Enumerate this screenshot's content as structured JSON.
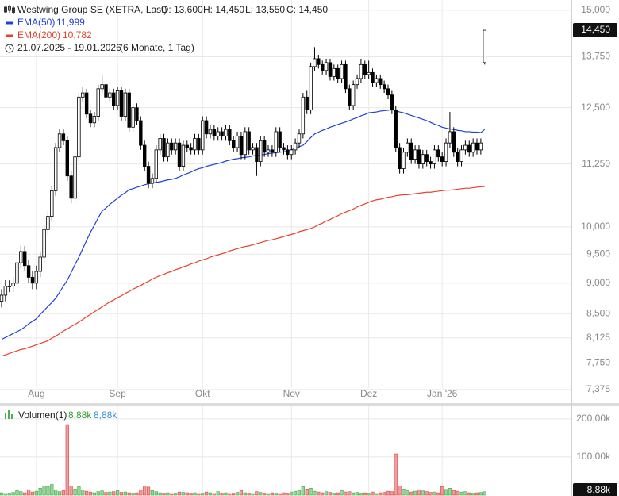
{
  "chart_data": [
    {
      "type": "candlestick",
      "title": "Westwing Group SE (XETRA, Last)",
      "header_values": [
        "O: 13,600",
        "H: 14,450",
        "L: 13,550",
        "C: 14,450"
      ],
      "range": "21.07.2025 - 19.01.2026",
      "period": "(6 Monate, 1 Tag)",
      "categories": [
        null,
        null,
        null,
        null,
        null,
        null,
        null,
        null,
        null,
        "Aug",
        null,
        null,
        null,
        null,
        null,
        null,
        null,
        null,
        null,
        null,
        null,
        null,
        null,
        null,
        null,
        null,
        null,
        null,
        null,
        null,
        "Sep",
        null,
        null,
        null,
        null,
        null,
        null,
        null,
        null,
        null,
        null,
        null,
        null,
        null,
        null,
        null,
        null,
        null,
        null,
        null,
        null,
        null,
        "Okt",
        null,
        null,
        null,
        null,
        null,
        null,
        null,
        null,
        null,
        null,
        null,
        null,
        null,
        null,
        null,
        null,
        null,
        null,
        null,
        null,
        null,
        null,
        "Nov",
        null,
        null,
        null,
        null,
        null,
        null,
        null,
        null,
        null,
        null,
        null,
        null,
        null,
        null,
        null,
        null,
        null,
        null,
        null,
        "Dez",
        null,
        null,
        null,
        null,
        null,
        null,
        null,
        null,
        null,
        null,
        null,
        null,
        null,
        null,
        null,
        null,
        null,
        null,
        "Jan '26",
        null,
        null,
        null,
        null,
        null,
        null,
        null,
        null,
        null,
        null,
        null
      ],
      "open": [
        8.7,
        8.8,
        8.95,
        8.95,
        9.0,
        9.35,
        9.55,
        9.3,
        9.1,
        9.0,
        9.2,
        9.45,
        9.95,
        10.2,
        10.7,
        11.6,
        11.9,
        11.75,
        11.0,
        10.55,
        11.4,
        12.75,
        12.85,
        12.35,
        12.15,
        12.3,
        12.95,
        13.05,
        12.75,
        12.85,
        12.55,
        12.9,
        12.3,
        12.85,
        12.05,
        12.5,
        12.2,
        11.65,
        11.2,
        10.85,
        10.95,
        11.55,
        11.8,
        11.4,
        11.7,
        11.55,
        11.7,
        11.2,
        11.65,
        11.6,
        11.55,
        11.8,
        11.55,
        12.2,
        11.9,
        12.0,
        11.85,
        11.95,
        11.85,
        12.0,
        11.75,
        11.6,
        11.85,
        11.45,
        11.95,
        11.55,
        11.6,
        11.3,
        11.75,
        11.5,
        11.55,
        11.5,
        11.95,
        11.6,
        11.55,
        11.45,
        11.55,
        11.7,
        11.9,
        12.75,
        12.45,
        13.5,
        13.7,
        13.55,
        13.4,
        13.6,
        13.25,
        13.45,
        13.2,
        13.55,
        12.95,
        12.55,
        13.05,
        13.2,
        13.55,
        13.3,
        13.35,
        13.1,
        13.2,
        13.05,
        12.95,
        12.8,
        12.45,
        11.6,
        11.15,
        11.5,
        11.7,
        11.35,
        11.55,
        11.25,
        11.45,
        11.3,
        11.25,
        11.55,
        11.4,
        11.3,
        11.7,
        11.95,
        11.5,
        11.3,
        11.55,
        11.65,
        11.5,
        11.7,
        11.55,
        13.6
      ],
      "high": [
        8.9,
        9.05,
        9.05,
        9.1,
        9.45,
        9.65,
        9.65,
        9.4,
        9.2,
        9.3,
        9.55,
        10.05,
        10.3,
        10.8,
        11.7,
        12.0,
        12.0,
        11.85,
        11.1,
        11.5,
        12.85,
        13.0,
        12.95,
        12.45,
        12.4,
        13.05,
        13.3,
        13.15,
        12.95,
        12.95,
        13.0,
        13.0,
        12.95,
        12.95,
        12.6,
        12.6,
        12.3,
        11.75,
        11.3,
        11.05,
        11.65,
        11.9,
        11.9,
        11.8,
        11.8,
        11.8,
        11.8,
        11.75,
        11.75,
        11.7,
        11.9,
        11.9,
        12.3,
        12.3,
        12.1,
        12.1,
        12.05,
        12.05,
        12.1,
        12.1,
        11.85,
        11.95,
        11.95,
        12.05,
        12.05,
        11.7,
        11.7,
        11.85,
        11.85,
        11.65,
        11.65,
        12.05,
        12.05,
        11.7,
        11.65,
        11.65,
        11.8,
        12.0,
        12.85,
        12.9,
        13.6,
        14.0,
        13.8,
        13.65,
        13.7,
        13.7,
        13.55,
        13.55,
        13.65,
        13.65,
        13.05,
        13.15,
        13.3,
        13.7,
        13.65,
        13.65,
        13.45,
        13.3,
        13.3,
        13.15,
        13.05,
        12.9,
        12.55,
        11.7,
        11.6,
        11.8,
        11.8,
        11.65,
        11.65,
        11.55,
        11.55,
        11.4,
        11.65,
        11.65,
        11.5,
        11.8,
        12.4,
        12.05,
        11.6,
        11.65,
        11.75,
        11.75,
        11.8,
        11.8,
        11.8,
        14.45
      ],
      "low": [
        8.6,
        8.7,
        8.85,
        8.85,
        8.9,
        9.25,
        9.2,
        9.0,
        8.9,
        8.9,
        9.1,
        9.35,
        9.85,
        10.1,
        10.6,
        11.5,
        11.65,
        10.9,
        10.45,
        10.45,
        11.3,
        12.65,
        12.25,
        12.05,
        12.05,
        12.2,
        12.85,
        12.65,
        12.65,
        12.45,
        12.45,
        12.2,
        12.2,
        11.95,
        11.95,
        12.1,
        11.55,
        11.1,
        10.75,
        10.75,
        10.85,
        11.45,
        11.3,
        11.3,
        11.45,
        11.45,
        11.1,
        11.1,
        11.5,
        11.45,
        11.45,
        11.45,
        11.45,
        11.8,
        11.8,
        11.75,
        11.75,
        11.75,
        11.75,
        11.65,
        11.5,
        11.5,
        11.35,
        11.35,
        11.45,
        11.45,
        11.0,
        11.2,
        11.4,
        11.4,
        11.4,
        11.4,
        11.5,
        11.45,
        11.35,
        11.35,
        11.45,
        11.6,
        11.8,
        12.35,
        12.35,
        13.4,
        13.45,
        13.3,
        13.3,
        13.15,
        13.15,
        13.1,
        13.1,
        12.85,
        12.45,
        12.45,
        12.95,
        13.1,
        13.2,
        13.2,
        13.0,
        13.0,
        12.95,
        12.85,
        12.7,
        12.35,
        11.5,
        11.05,
        11.05,
        11.4,
        11.25,
        11.25,
        11.15,
        11.15,
        11.2,
        11.15,
        11.15,
        11.3,
        11.2,
        11.2,
        11.6,
        11.4,
        11.2,
        11.2,
        11.45,
        11.4,
        11.4,
        11.45,
        11.45,
        13.55
      ],
      "close": [
        8.8,
        8.95,
        8.95,
        9.0,
        9.35,
        9.55,
        9.3,
        9.1,
        9.0,
        9.2,
        9.45,
        9.95,
        10.2,
        10.7,
        11.6,
        11.9,
        11.75,
        11.0,
        10.55,
        11.4,
        12.75,
        12.85,
        12.35,
        12.15,
        12.3,
        12.95,
        13.05,
        12.75,
        12.85,
        12.55,
        12.9,
        12.3,
        12.85,
        12.05,
        12.5,
        12.2,
        11.65,
        11.2,
        10.85,
        10.95,
        11.55,
        11.8,
        11.4,
        11.7,
        11.55,
        11.7,
        11.2,
        11.65,
        11.6,
        11.55,
        11.8,
        11.55,
        12.2,
        11.9,
        12.0,
        11.85,
        11.95,
        11.85,
        12.0,
        11.75,
        11.6,
        11.85,
        11.45,
        11.95,
        11.55,
        11.6,
        11.3,
        11.75,
        11.5,
        11.55,
        11.5,
        11.95,
        11.6,
        11.55,
        11.45,
        11.55,
        11.7,
        11.9,
        12.75,
        12.45,
        13.5,
        13.7,
        13.55,
        13.4,
        13.6,
        13.25,
        13.45,
        13.2,
        13.55,
        12.95,
        12.55,
        13.05,
        13.2,
        13.55,
        13.3,
        13.35,
        13.1,
        13.2,
        13.05,
        12.95,
        12.8,
        12.45,
        11.6,
        11.15,
        11.5,
        11.7,
        11.35,
        11.55,
        11.25,
        11.45,
        11.3,
        11.25,
        11.55,
        11.4,
        11.3,
        11.7,
        11.95,
        11.5,
        11.3,
        11.55,
        11.65,
        11.5,
        11.7,
        11.55,
        11.7,
        14.45
      ],
      "up_color": "#ffffff",
      "down_color": "#000000",
      "last_value_label": "14,450",
      "series": [
        {
          "name": "EMA(50)",
          "color": "#2040d8",
          "value_label": "11,999",
          "values": [
            8.1,
            8.13,
            8.16,
            8.19,
            8.22,
            8.25,
            8.29,
            8.34,
            8.38,
            8.42,
            8.49,
            8.55,
            8.62,
            8.68,
            8.75,
            8.85,
            8.95,
            9.05,
            9.18,
            9.32,
            9.45,
            9.6,
            9.75,
            9.9,
            10.03,
            10.17,
            10.3,
            10.36,
            10.43,
            10.49,
            10.55,
            10.61,
            10.66,
            10.72,
            10.74,
            10.77,
            10.79,
            10.82,
            10.84,
            10.85,
            10.87,
            10.88,
            10.9,
            10.92,
            10.93,
            10.95,
            10.98,
            11.02,
            11.05,
            11.08,
            11.12,
            11.15,
            11.17,
            11.2,
            11.22,
            11.24,
            11.26,
            11.28,
            11.31,
            11.33,
            11.35,
            11.36,
            11.38,
            11.39,
            11.4,
            11.42,
            11.43,
            11.44,
            11.45,
            11.47,
            11.48,
            11.49,
            11.5,
            11.51,
            11.52,
            11.55,
            11.58,
            11.62,
            11.65,
            11.73,
            11.82,
            11.9,
            11.94,
            11.98,
            12.01,
            12.05,
            12.08,
            12.11,
            12.14,
            12.17,
            12.2,
            12.24,
            12.27,
            12.31,
            12.34,
            12.38,
            12.39,
            12.4,
            12.42,
            12.43,
            12.44,
            12.45,
            12.43,
            12.4,
            12.38,
            12.35,
            12.32,
            12.29,
            12.26,
            12.23,
            12.2,
            12.16,
            12.12,
            12.09,
            12.05,
            12.03,
            12.01,
            12.0,
            11.98,
            11.97,
            11.95,
            11.95,
            11.94,
            11.94,
            11.93,
            11.999
          ]
        },
        {
          "name": "EMA(200)",
          "color": "#e8412c",
          "value_label": "10,782",
          "values": [
            7.85,
            7.87,
            7.89,
            7.91,
            7.93,
            7.95,
            7.96,
            7.98,
            8.0,
            8.02,
            8.04,
            8.06,
            8.08,
            8.12,
            8.15,
            8.19,
            8.23,
            8.26,
            8.3,
            8.33,
            8.37,
            8.41,
            8.45,
            8.49,
            8.53,
            8.57,
            8.61,
            8.65,
            8.69,
            8.72,
            8.76,
            8.79,
            8.83,
            8.86,
            8.9,
            8.93,
            8.96,
            9.0,
            9.03,
            9.07,
            9.1,
            9.13,
            9.15,
            9.18,
            9.2,
            9.23,
            9.25,
            9.28,
            9.3,
            9.33,
            9.35,
            9.38,
            9.4,
            9.42,
            9.45,
            9.47,
            9.49,
            9.51,
            9.53,
            9.56,
            9.58,
            9.6,
            9.62,
            9.64,
            9.65,
            9.67,
            9.69,
            9.71,
            9.73,
            9.75,
            9.76,
            9.78,
            9.8,
            9.82,
            9.84,
            9.86,
            9.88,
            9.91,
            9.93,
            9.95,
            9.97,
            10.0,
            10.04,
            10.07,
            10.11,
            10.14,
            10.18,
            10.21,
            10.25,
            10.28,
            10.31,
            10.34,
            10.38,
            10.41,
            10.44,
            10.47,
            10.5,
            10.52,
            10.53,
            10.55,
            10.57,
            10.58,
            10.6,
            10.61,
            10.62,
            10.62,
            10.63,
            10.64,
            10.65,
            10.66,
            10.67,
            10.67,
            10.68,
            10.69,
            10.7,
            10.71,
            10.71,
            10.72,
            10.73,
            10.74,
            10.75,
            10.75,
            10.76,
            10.77,
            10.78,
            10.782
          ]
        }
      ],
      "log_scale": true,
      "ylim": [
        7.19,
        15.29
      ],
      "yticks": [
        {
          "value": 7.375,
          "label": "7,375"
        },
        {
          "value": 7.75,
          "label": "7,750"
        },
        {
          "value": 8.125,
          "label": "8,125"
        },
        {
          "value": 8.5,
          "label": "8,500"
        },
        {
          "value": 9,
          "label": "9,000"
        },
        {
          "value": 9.5,
          "label": "9,500"
        },
        {
          "value": 10,
          "label": "10,000"
        },
        {
          "value": 11.25,
          "label": "11,250"
        },
        {
          "value": 12.5,
          "label": "12,500"
        },
        {
          "value": 13.75,
          "label": "13,750"
        },
        {
          "value": 15,
          "label": "15,000"
        }
      ],
      "grid": true
    },
    {
      "type": "bar",
      "series": [
        {
          "name": "Volumen(1)",
          "value_label": "8,88k",
          "values": [
            6000,
            4000,
            5000,
            7000,
            12000,
            9000,
            6000,
            14000,
            8000,
            10000,
            18000,
            24000,
            22000,
            28000,
            14000,
            9000,
            12000,
            185000,
            24000,
            16000,
            22000,
            14000,
            10000,
            8000,
            6000,
            9000,
            11000,
            7000,
            8000,
            9000,
            12000,
            7000,
            8000,
            6000,
            5000,
            6000,
            14000,
            24000,
            21000,
            12000,
            9000,
            6000,
            5000,
            6000,
            4000,
            5000,
            8000,
            7000,
            6000,
            5000,
            6000,
            4000,
            5000,
            8000,
            6000,
            4000,
            9000,
            5000,
            6000,
            4000,
            5000,
            7000,
            12000,
            6000,
            5000,
            4000,
            9000,
            7000,
            5000,
            4000,
            6000,
            5000,
            4000,
            6000,
            5000,
            8000,
            10000,
            12000,
            22000,
            16000,
            18000,
            10000,
            8000,
            6000,
            9000,
            7000,
            5000,
            6000,
            12000,
            8000,
            9000,
            6000,
            7000,
            5000,
            6000,
            5000,
            8000,
            4000,
            6000,
            7000,
            10000,
            9000,
            108000,
            24000,
            16000,
            12000,
            8000,
            10000,
            14000,
            11000,
            9000,
            7000,
            8000,
            6000,
            22000,
            15000,
            18000,
            12000,
            10000,
            8000,
            9000,
            6000,
            5000,
            6000,
            7000,
            8880
          ]
        }
      ],
      "up_color": "#4caf50",
      "down_color": "#e05050",
      "ylim": [
        0,
        233000
      ],
      "yticks": [
        {
          "value": 100000,
          "label": "100,00k"
        },
        {
          "value": 200000,
          "label": "200,00k"
        }
      ],
      "grid": true
    }
  ]
}
